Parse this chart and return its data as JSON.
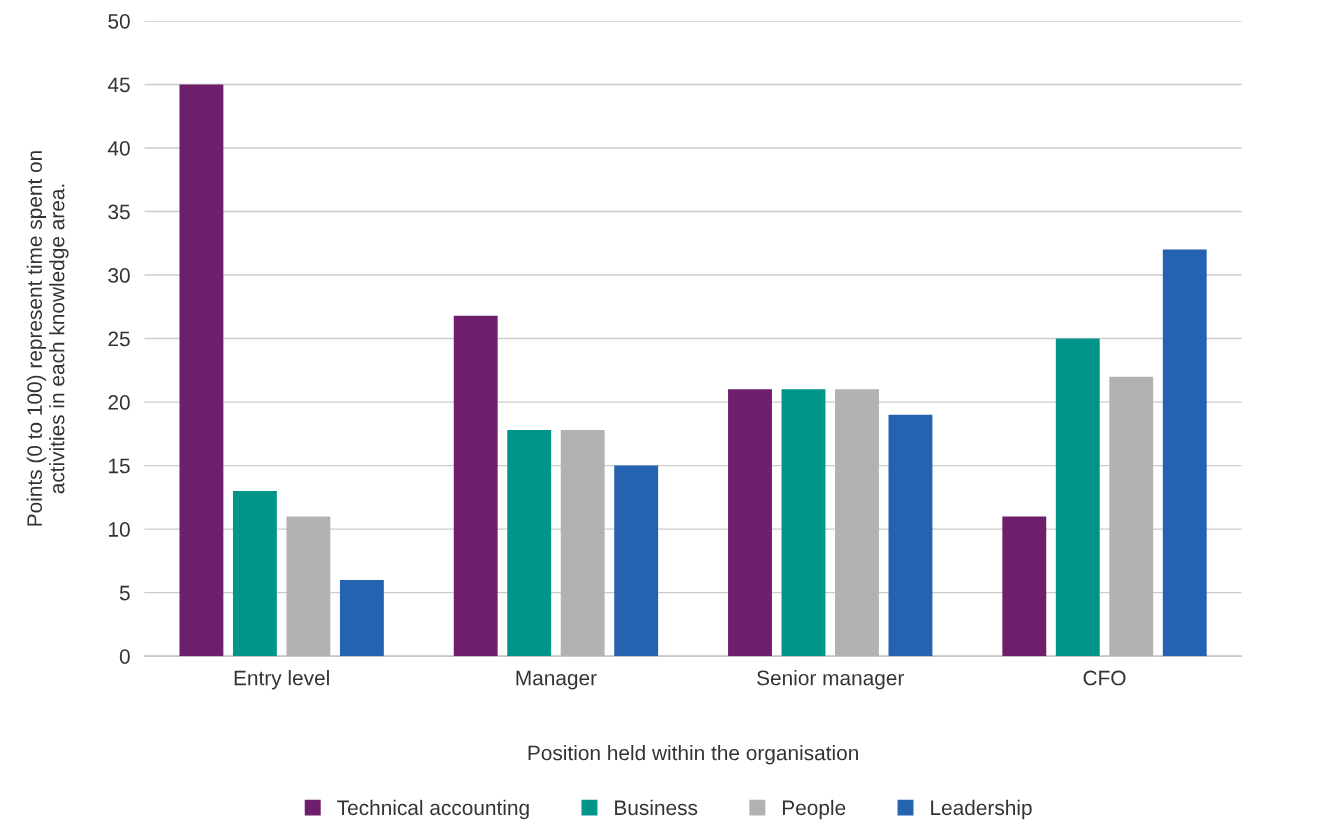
{
  "chart_data": {
    "type": "bar",
    "xlabel": "Position held within the organisation",
    "ylabel": "Points (0 to 100) represent time spent on\nactivities in each knowledge area.",
    "categories": [
      "Entry level",
      "Manager",
      "Senior manager",
      "CFO"
    ],
    "series": [
      {
        "name": "Technical accounting",
        "color": "#6d1f6b",
        "values": [
          45,
          26.8,
          21,
          11
        ]
      },
      {
        "name": "Business",
        "color": "#00958a",
        "values": [
          13,
          17.8,
          21,
          25
        ]
      },
      {
        "name": "People",
        "color": "#b1b3b3",
        "values": [
          11,
          17.8,
          21,
          22
        ]
      },
      {
        "name": "Leadership",
        "color": "#2562b0",
        "values": [
          6,
          15,
          19,
          32
        ]
      }
    ],
    "ylim": [
      0,
      50
    ],
    "yticks": [
      0,
      5,
      10,
      15,
      20,
      25,
      30,
      35,
      40,
      45,
      50
    ],
    "grid": "y",
    "legend": "bottom"
  }
}
